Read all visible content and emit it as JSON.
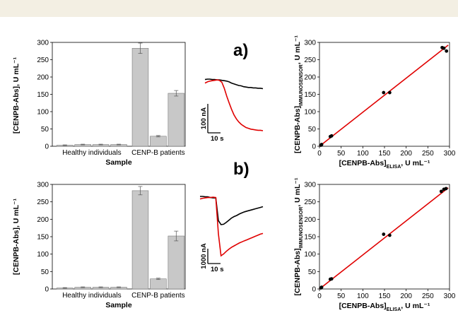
{
  "panels": [
    {
      "label": "a)"
    },
    {
      "label": "b)"
    }
  ],
  "chart_data": [
    {
      "type": "bar",
      "row": "a",
      "ylabel": "[CENPB-Abs], U mL⁻¹",
      "xlabel": "Sample",
      "group_labels": [
        "Healthy individuals",
        "CENP-B patients"
      ],
      "values": [
        3,
        5,
        5,
        5,
        283,
        29,
        153
      ],
      "errors": [
        1,
        1,
        1,
        1,
        15,
        2,
        8
      ],
      "ylim": [
        0,
        300
      ],
      "yticks": [
        0,
        50,
        100,
        150,
        200,
        250,
        300
      ],
      "bar_color": "#c8c8c8"
    },
    {
      "type": "line",
      "row": "a",
      "scale_bar_y": "100 nA",
      "scale_bar_x": "10 s",
      "series": [
        {
          "color": "#000000",
          "values": [
            187,
            188,
            188,
            187,
            187,
            186,
            186,
            185,
            184,
            183,
            181,
            178,
            176,
            174,
            172,
            171,
            169,
            168,
            167,
            167,
            166,
            166,
            165,
            165,
            164
          ]
        },
        {
          "color": "#e00000",
          "values": [
            178,
            181,
            183,
            184,
            185,
            186,
            185,
            180,
            165,
            145,
            128,
            112,
            98,
            88,
            80,
            74,
            70,
            66,
            64,
            62,
            61,
            60,
            59,
            59,
            58
          ]
        }
      ]
    },
    {
      "type": "scatter",
      "row": "a",
      "xlabel_main": "[CENPB-Abs]",
      "xlabel_sub": "ELISA",
      "xlabel_unit": ", U mL⁻¹",
      "ylabel_main": "[CENPB-Abs]",
      "ylabel_sub": "IMMUNOSENSOR",
      "ylabel_unit": ", U mL⁻¹",
      "xlim": [
        0,
        300
      ],
      "ylim": [
        0,
        300
      ],
      "xticks": [
        0,
        50,
        100,
        150,
        200,
        250,
        300
      ],
      "yticks": [
        0,
        50,
        100,
        150,
        200,
        250,
        300
      ],
      "points": [
        [
          3,
          3
        ],
        [
          5,
          5
        ],
        [
          25,
          28
        ],
        [
          28,
          30
        ],
        [
          148,
          155
        ],
        [
          162,
          155
        ],
        [
          283,
          285
        ],
        [
          287,
          283
        ],
        [
          293,
          275
        ]
      ],
      "fit_line": [
        [
          0,
          0
        ],
        [
          297,
          292
        ]
      ],
      "line_color": "#e00000"
    },
    {
      "type": "bar",
      "row": "b",
      "ylabel": "[CENPB-Abs], U mL⁻¹",
      "xlabel": "Sample",
      "group_labels": [
        "Healthy individuals",
        "CENP-B patients"
      ],
      "values": [
        3,
        5,
        5,
        5,
        282,
        29,
        152
      ],
      "errors": [
        1,
        1,
        1,
        1,
        12,
        2,
        14
      ],
      "ylim": [
        0,
        300
      ],
      "yticks": [
        0,
        50,
        100,
        150,
        200,
        250,
        300
      ],
      "bar_color": "#c8c8c8"
    },
    {
      "type": "line",
      "row": "b",
      "scale_bar_y": "1000 nA",
      "scale_bar_x": "10 s",
      "series": [
        {
          "color": "#000000",
          "values": [
            262,
            262,
            261,
            261,
            259,
            258,
            258,
            196,
            185,
            186,
            191,
            197,
            203,
            207,
            210,
            214,
            217,
            220,
            222,
            224,
            226,
            228,
            230,
            232,
            234
          ]
        },
        {
          "color": "#e00000",
          "values": [
            255,
            257,
            258,
            259,
            259,
            260,
            259,
            160,
            100,
            105,
            112,
            118,
            123,
            127,
            131,
            135,
            138,
            141,
            144,
            147,
            150,
            153,
            156,
            159,
            161
          ]
        }
      ]
    },
    {
      "type": "scatter",
      "row": "b",
      "xlabel_main": "[CENPB-Abs]",
      "xlabel_sub": "ELISA",
      "xlabel_unit": ", U mL⁻¹",
      "ylabel_main": "[CENPB-Abs]",
      "ylabel_sub": "IMMUNOSENSOR",
      "ylabel_unit": ", U mL⁻¹",
      "xlim": [
        0,
        300
      ],
      "ylim": [
        0,
        300
      ],
      "xticks": [
        0,
        50,
        100,
        150,
        200,
        250,
        300
      ],
      "yticks": [
        0,
        50,
        100,
        150,
        200,
        250,
        300
      ],
      "points": [
        [
          3,
          3
        ],
        [
          5,
          5
        ],
        [
          25,
          28
        ],
        [
          28,
          29
        ],
        [
          148,
          157
        ],
        [
          162,
          154
        ],
        [
          281,
          280
        ],
        [
          287,
          286
        ],
        [
          292,
          288
        ]
      ],
      "fit_line": [
        [
          0,
          0
        ],
        [
          297,
          290
        ]
      ],
      "line_color": "#e00000"
    }
  ]
}
